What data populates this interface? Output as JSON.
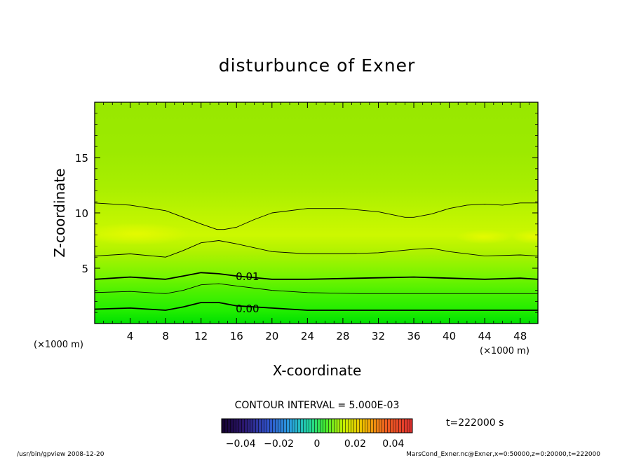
{
  "chart_data": {
    "type": "heatmap",
    "title": "disturbunce of Exner",
    "xlabel": "X-coordinate",
    "ylabel": "Z-coordinate",
    "x_unit": "(×1000 m)",
    "y_unit": "(×1000 m)",
    "xlim": [
      0,
      50
    ],
    "ylim": [
      0,
      20
    ],
    "x_ticks": [
      4,
      8,
      12,
      16,
      20,
      24,
      28,
      32,
      36,
      40,
      44,
      48
    ],
    "y_ticks": [
      5,
      10,
      15
    ],
    "contour_interval_label": "CONTOUR INTERVAL = 5.000E-03",
    "contour_labels": [
      {
        "text": "0.01",
        "x": 17.0,
        "z": 4.3
      },
      {
        "text": "0.00",
        "x": 17.0,
        "z": 1.4
      }
    ],
    "contours": [
      {
        "level": 0.0,
        "bold": true,
        "points": [
          [
            0,
            1.3
          ],
          [
            4,
            1.4
          ],
          [
            8,
            1.2
          ],
          [
            10,
            1.5
          ],
          [
            12,
            1.9
          ],
          [
            14,
            1.9
          ],
          [
            16,
            1.6
          ],
          [
            20,
            1.4
          ],
          [
            24,
            1.2
          ],
          [
            30,
            1.2
          ],
          [
            36,
            1.2
          ],
          [
            40,
            1.2
          ],
          [
            44,
            1.2
          ],
          [
            48,
            1.2
          ],
          [
            50,
            1.2
          ]
        ]
      },
      {
        "level": 0.005,
        "bold": false,
        "points": [
          [
            0,
            2.8
          ],
          [
            4,
            2.9
          ],
          [
            8,
            2.7
          ],
          [
            10,
            3.0
          ],
          [
            12,
            3.5
          ],
          [
            14,
            3.6
          ],
          [
            16,
            3.4
          ],
          [
            20,
            3.0
          ],
          [
            24,
            2.8
          ],
          [
            30,
            2.7
          ],
          [
            36,
            2.7
          ],
          [
            40,
            2.7
          ],
          [
            44,
            2.7
          ],
          [
            48,
            2.7
          ],
          [
            50,
            2.7
          ]
        ]
      },
      {
        "level": 0.01,
        "bold": true,
        "points": [
          [
            0,
            4.0
          ],
          [
            4,
            4.2
          ],
          [
            8,
            4.0
          ],
          [
            10,
            4.3
          ],
          [
            12,
            4.6
          ],
          [
            14,
            4.5
          ],
          [
            16,
            4.3
          ],
          [
            20,
            4.0
          ],
          [
            24,
            4.0
          ],
          [
            30,
            4.1
          ],
          [
            36,
            4.2
          ],
          [
            40,
            4.1
          ],
          [
            44,
            4.0
          ],
          [
            48,
            4.1
          ],
          [
            50,
            4.0
          ]
        ]
      },
      {
        "level": 0.015,
        "bold": false,
        "points": [
          [
            0,
            6.1
          ],
          [
            4,
            6.3
          ],
          [
            8,
            6.0
          ],
          [
            10,
            6.6
          ],
          [
            12,
            7.3
          ],
          [
            14,
            7.5
          ],
          [
            16,
            7.2
          ],
          [
            20,
            6.5
          ],
          [
            24,
            6.3
          ],
          [
            28,
            6.3
          ],
          [
            32,
            6.4
          ],
          [
            36,
            6.7
          ],
          [
            38,
            6.8
          ],
          [
            40,
            6.5
          ],
          [
            44,
            6.1
          ],
          [
            48,
            6.2
          ],
          [
            50,
            6.1
          ]
        ]
      },
      {
        "level": 0.02,
        "bold": false,
        "points": [
          [
            0,
            10.9
          ],
          [
            4,
            10.7
          ],
          [
            8,
            10.2
          ],
          [
            10,
            9.6
          ],
          [
            12,
            9.0
          ],
          [
            13.8,
            8.5
          ],
          [
            14.6,
            8.5
          ],
          [
            16,
            8.7
          ],
          [
            18,
            9.4
          ],
          [
            20,
            10.0
          ],
          [
            24,
            10.4
          ],
          [
            28,
            10.4
          ],
          [
            32,
            10.1
          ],
          [
            35,
            9.6
          ],
          [
            36,
            9.6
          ],
          [
            38,
            9.9
          ],
          [
            40,
            10.4
          ],
          [
            42,
            10.7
          ],
          [
            44,
            10.8
          ],
          [
            46,
            10.7
          ],
          [
            48,
            10.9
          ],
          [
            50,
            10.9
          ]
        ]
      }
    ],
    "colorbar": {
      "ticks": [
        -0.04,
        -0.02,
        0,
        0.02,
        0.04
      ],
      "tick_labels": [
        "−0.04",
        "−0.02",
        "0",
        "0.02",
        "0.04"
      ],
      "range": [
        -0.05,
        0.05
      ]
    }
  },
  "meta": {
    "time_label": "t=222000 s",
    "footer_left": "/usr/bin/gpview  2008-12-20",
    "footer_right": "MarsCond_Exner.nc@Exner,x=0:50000,z=0:20000,t=222000"
  }
}
